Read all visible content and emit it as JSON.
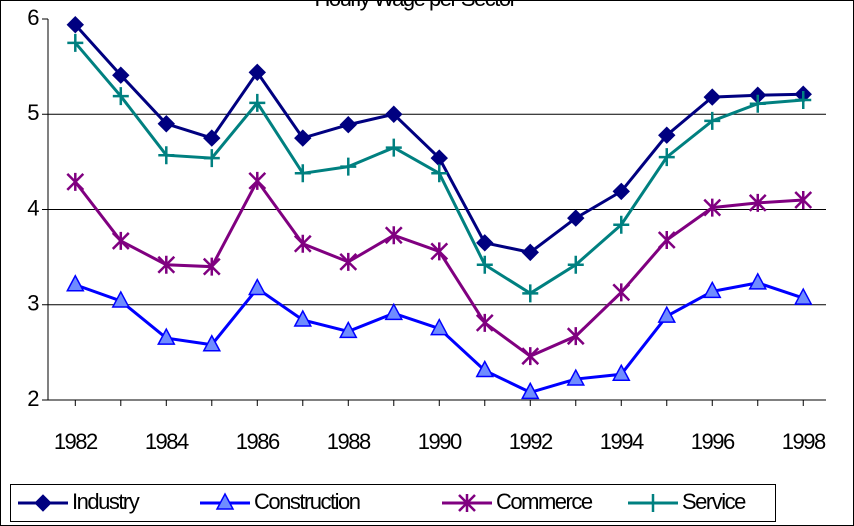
{
  "chart_data": {
    "type": "line",
    "title": "Hourly Wage per Sector",
    "x": [
      1982,
      1983,
      1984,
      1985,
      1986,
      1987,
      1988,
      1989,
      1990,
      1991,
      1992,
      1993,
      1994,
      1995,
      1996,
      1997,
      1998
    ],
    "xlim": [
      1981.4,
      1998.5
    ],
    "xticks": [
      1982,
      1984,
      1986,
      1988,
      1990,
      1992,
      1994,
      1996,
      1998
    ],
    "ylim": [
      2,
      6
    ],
    "yticks": [
      2,
      3,
      4,
      5,
      6
    ],
    "grid": true,
    "legend": "bottom",
    "series": [
      {
        "name": "Industry",
        "color": "#000080",
        "marker": "diamond",
        "values": [
          5.94,
          5.41,
          4.9,
          4.75,
          5.44,
          4.75,
          4.89,
          5.0,
          4.54,
          3.65,
          3.55,
          3.91,
          4.19,
          4.78,
          5.18,
          5.2,
          5.21
        ]
      },
      {
        "name": "Construction",
        "color": "#0000ff",
        "marker": "triangle",
        "values": [
          3.21,
          3.04,
          2.65,
          2.58,
          3.17,
          2.84,
          2.72,
          2.91,
          2.75,
          2.31,
          2.08,
          2.22,
          2.27,
          2.88,
          3.14,
          3.23,
          3.07
        ]
      },
      {
        "name": "Commerce",
        "color": "#800080",
        "marker": "star",
        "values": [
          4.29,
          3.67,
          3.42,
          3.4,
          4.3,
          3.64,
          3.45,
          3.73,
          3.56,
          2.81,
          2.46,
          2.67,
          3.13,
          3.68,
          4.02,
          4.07,
          4.1
        ]
      },
      {
        "name": "Service",
        "color": "#008080",
        "marker": "plus",
        "values": [
          5.75,
          5.19,
          4.57,
          4.54,
          5.12,
          4.38,
          4.45,
          4.65,
          4.38,
          3.42,
          3.12,
          3.42,
          3.84,
          4.55,
          4.93,
          5.11,
          5.15
        ]
      }
    ]
  }
}
